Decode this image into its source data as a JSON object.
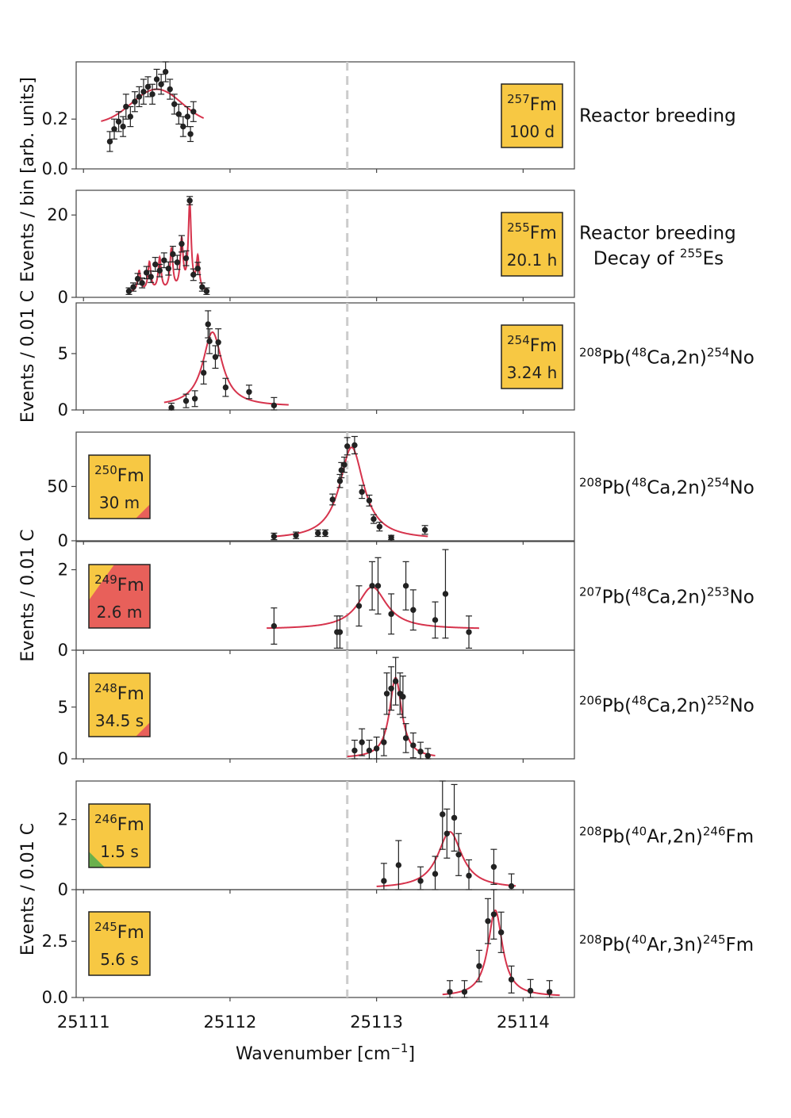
{
  "chart_data": {
    "type": "scatter",
    "xlabel": "Wavenumber [cm",
    "xlabel_sup": "−1",
    "xlabel_end": "]",
    "x_ticks": [
      25111,
      25112,
      25113,
      25114
    ],
    "xlim": [
      25110.95,
      25114.35
    ],
    "reference_line_x": 25112.8,
    "colors": {
      "fit_line": "#d6334c",
      "box_yellow": "#f7c843",
      "box_red": "#e8605a",
      "box_green": "#6ab04c",
      "ref_line": "#cccccc"
    },
    "y_group_labels": [
      {
        "text": "Events / bin [arb. units]",
        "panels": [
          0,
          1
        ]
      },
      {
        "text": "Events / 0.01 C",
        "panels": [
          2
        ]
      },
      {
        "text": "Events / 0.01 C",
        "panels": [
          3,
          4,
          5
        ]
      },
      {
        "text": "Events / 0.01 C",
        "panels": [
          6,
          7
        ]
      }
    ],
    "panels": [
      {
        "isotope_mass": "257",
        "isotope_symbol": "Fm",
        "half_life": "100 d",
        "box_side": "right",
        "box_fill": "yellow",
        "production": [
          {
            "text": "Reactor breeding"
          }
        ],
        "ylim": [
          0,
          0.43
        ],
        "yticks": [
          0.0,
          0.2
        ],
        "ytick_labels": [
          "0.0",
          "0.2"
        ],
        "fit": {
          "type": "gauss",
          "center": 25111.5,
          "width": 0.17,
          "amp": 0.14,
          "baseline": 0.18,
          "range": [
            25111.12,
            25111.82
          ]
        },
        "points": [
          {
            "x": 25111.18,
            "y": 0.11,
            "err": 0.04
          },
          {
            "x": 25111.21,
            "y": 0.16,
            "err": 0.04
          },
          {
            "x": 25111.24,
            "y": 0.19,
            "err": 0.04
          },
          {
            "x": 25111.27,
            "y": 0.17,
            "err": 0.04
          },
          {
            "x": 25111.29,
            "y": 0.25,
            "err": 0.05
          },
          {
            "x": 25111.32,
            "y": 0.21,
            "err": 0.04
          },
          {
            "x": 25111.35,
            "y": 0.27,
            "err": 0.04
          },
          {
            "x": 25111.38,
            "y": 0.29,
            "err": 0.04
          },
          {
            "x": 25111.41,
            "y": 0.31,
            "err": 0.05
          },
          {
            "x": 25111.44,
            "y": 0.33,
            "err": 0.04
          },
          {
            "x": 25111.47,
            "y": 0.3,
            "err": 0.04
          },
          {
            "x": 25111.5,
            "y": 0.36,
            "err": 0.04
          },
          {
            "x": 25111.53,
            "y": 0.34,
            "err": 0.04
          },
          {
            "x": 25111.56,
            "y": 0.39,
            "err": 0.04
          },
          {
            "x": 25111.59,
            "y": 0.32,
            "err": 0.04
          },
          {
            "x": 25111.62,
            "y": 0.26,
            "err": 0.04
          },
          {
            "x": 25111.65,
            "y": 0.22,
            "err": 0.04
          },
          {
            "x": 25111.68,
            "y": 0.17,
            "err": 0.04
          },
          {
            "x": 25111.71,
            "y": 0.21,
            "err": 0.04
          },
          {
            "x": 25111.73,
            "y": 0.14,
            "err": 0.03
          },
          {
            "x": 25111.75,
            "y": 0.23,
            "err": 0.04
          }
        ]
      },
      {
        "isotope_mass": "255",
        "isotope_symbol": "Fm",
        "half_life": "20.1 h",
        "box_side": "right",
        "box_fill": "yellow",
        "production": [
          {
            "text": "Reactor breeding"
          },
          {
            "text": "Decay of ",
            "sup": "255",
            "after": "Es"
          }
        ],
        "ylim": [
          0,
          26
        ],
        "yticks": [
          0,
          20
        ],
        "ytick_labels": [
          "0",
          "20"
        ],
        "fit": {
          "type": "comb",
          "peaks": [
            {
              "x": 25111.38,
              "a": 5
            },
            {
              "x": 25111.45,
              "a": 7
            },
            {
              "x": 25111.52,
              "a": 8
            },
            {
              "x": 25111.6,
              "a": 10
            },
            {
              "x": 25111.67,
              "a": 12
            },
            {
              "x": 25111.725,
              "a": 21
            },
            {
              "x": 25111.78,
              "a": 8
            }
          ],
          "width": 0.012,
          "baseline": 1.2,
          "range": [
            25111.3,
            25111.85
          ]
        },
        "points": [
          {
            "x": 25111.31,
            "y": 1.5,
            "err": 0.8
          },
          {
            "x": 25111.34,
            "y": 2.5,
            "err": 1.0
          },
          {
            "x": 25111.37,
            "y": 4.5,
            "err": 1.3
          },
          {
            "x": 25111.4,
            "y": 3.5,
            "err": 1.2
          },
          {
            "x": 25111.43,
            "y": 6.0,
            "err": 1.5
          },
          {
            "x": 25111.46,
            "y": 5.0,
            "err": 1.4
          },
          {
            "x": 25111.49,
            "y": 8.0,
            "err": 1.7
          },
          {
            "x": 25111.52,
            "y": 6.5,
            "err": 1.5
          },
          {
            "x": 25111.55,
            "y": 9.0,
            "err": 1.8
          },
          {
            "x": 25111.58,
            "y": 7.0,
            "err": 1.6
          },
          {
            "x": 25111.61,
            "y": 10.5,
            "err": 1.9
          },
          {
            "x": 25111.64,
            "y": 8.5,
            "err": 1.7
          },
          {
            "x": 25111.67,
            "y": 13.0,
            "err": 2.0
          },
          {
            "x": 25111.7,
            "y": 9.5,
            "err": 1.8
          },
          {
            "x": 25111.725,
            "y": 23.5,
            "err": 1.0
          },
          {
            "x": 25111.75,
            "y": 5.5,
            "err": 1.4
          },
          {
            "x": 25111.78,
            "y": 7.0,
            "err": 1.5
          },
          {
            "x": 25111.81,
            "y": 2.5,
            "err": 1.0
          },
          {
            "x": 25111.84,
            "y": 1.5,
            "err": 0.8
          }
        ]
      },
      {
        "isotope_mass": "254",
        "isotope_symbol": "Fm",
        "half_life": "3.24 h",
        "box_side": "right",
        "box_fill": "yellow",
        "production": [
          {
            "sup1": "208",
            "a": "Pb(",
            "sup2": "48",
            "b": "Ca,2n)",
            "sup3": "254",
            "c": "No"
          }
        ],
        "ylim": [
          0,
          9.5
        ],
        "yticks": [
          0,
          5
        ],
        "ytick_labels": [
          "0",
          "5"
        ],
        "fit": {
          "type": "lorentz",
          "center": 25111.88,
          "gamma": 0.08,
          "amp": 6.6,
          "baseline": 0.3,
          "range": [
            25111.55,
            25112.4
          ]
        },
        "points": [
          {
            "x": 25111.6,
            "y": 0.2,
            "err": 0.4
          },
          {
            "x": 25111.7,
            "y": 0.8,
            "err": 0.6
          },
          {
            "x": 25111.76,
            "y": 1.0,
            "err": 0.7
          },
          {
            "x": 25111.82,
            "y": 3.3,
            "err": 1.0
          },
          {
            "x": 25111.85,
            "y": 7.6,
            "err": 1.2
          },
          {
            "x": 25111.86,
            "y": 6.1,
            "err": 1.1
          },
          {
            "x": 25111.9,
            "y": 4.7,
            "err": 1.0
          },
          {
            "x": 25111.92,
            "y": 6.0,
            "err": 1.2
          },
          {
            "x": 25111.97,
            "y": 2.0,
            "err": 0.8
          },
          {
            "x": 25112.13,
            "y": 1.6,
            "err": 0.6
          },
          {
            "x": 25112.3,
            "y": 0.4,
            "err": 0.7
          }
        ]
      },
      {
        "isotope_mass": "250",
        "isotope_symbol": "Fm",
        "half_life": "30 m",
        "box_side": "left",
        "box_fill": "yellow",
        "box_corner": "red-bottom-right",
        "production": [
          {
            "sup1": "208",
            "a": "Pb(",
            "sup2": "48",
            "b": "Ca,2n)",
            "sup3": "254",
            "c": "No"
          }
        ],
        "ylim": [
          0,
          100
        ],
        "yticks": [
          0,
          50
        ],
        "ytick_labels": [
          "0",
          "50"
        ],
        "fit": {
          "type": "lorentz",
          "center": 25112.83,
          "gamma": 0.1,
          "amp": 85,
          "baseline": 1,
          "range": [
            25112.3,
            25113.35
          ]
        },
        "points": [
          {
            "x": 25112.3,
            "y": 4,
            "err": 3
          },
          {
            "x": 25112.45,
            "y": 5,
            "err": 3
          },
          {
            "x": 25112.6,
            "y": 7,
            "err": 3
          },
          {
            "x": 25112.65,
            "y": 7,
            "err": 3
          },
          {
            "x": 25112.7,
            "y": 38,
            "err": 5
          },
          {
            "x": 25112.75,
            "y": 55,
            "err": 6
          },
          {
            "x": 25112.76,
            "y": 65,
            "err": 7
          },
          {
            "x": 25112.78,
            "y": 70,
            "err": 7
          },
          {
            "x": 25112.8,
            "y": 87,
            "err": 8
          },
          {
            "x": 25112.85,
            "y": 88,
            "err": 8
          },
          {
            "x": 25112.9,
            "y": 45,
            "err": 6
          },
          {
            "x": 25112.95,
            "y": 37,
            "err": 5
          },
          {
            "x": 25112.98,
            "y": 20,
            "err": 4
          },
          {
            "x": 25113.02,
            "y": 13,
            "err": 4
          },
          {
            "x": 25113.1,
            "y": 3,
            "err": 2
          },
          {
            "x": 25113.33,
            "y": 10,
            "err": 4
          }
        ]
      },
      {
        "isotope_mass": "249",
        "isotope_symbol": "Fm",
        "half_life": "2.6 m",
        "box_side": "left",
        "box_fill": "red",
        "box_corner": "yellow-top-left",
        "production": [
          {
            "sup1": "207",
            "a": "Pb(",
            "sup2": "48",
            "b": "Ca,2n)",
            "sup3": "253",
            "c": "No"
          }
        ],
        "ylim": [
          0,
          2.7
        ],
        "yticks": [
          0,
          2
        ],
        "ytick_labels": [
          "0",
          "2"
        ],
        "fit": {
          "type": "lorentz",
          "center": 25112.97,
          "gamma": 0.12,
          "amp": 1.05,
          "baseline": 0.52,
          "range": [
            25112.25,
            25113.7
          ]
        },
        "points": [
          {
            "x": 25112.3,
            "y": 0.6,
            "err": 0.45
          },
          {
            "x": 25112.73,
            "y": 0.45,
            "err": 0.4
          },
          {
            "x": 25112.75,
            "y": 0.45,
            "err": 0.4
          },
          {
            "x": 25112.88,
            "y": 1.1,
            "err": 0.5
          },
          {
            "x": 25112.97,
            "y": 1.6,
            "err": 0.6
          },
          {
            "x": 25113.01,
            "y": 1.6,
            "err": 0.7
          },
          {
            "x": 25113.1,
            "y": 0.9,
            "err": 0.5
          },
          {
            "x": 25113.2,
            "y": 1.6,
            "err": 0.6
          },
          {
            "x": 25113.25,
            "y": 1.0,
            "err": 0.5
          },
          {
            "x": 25113.4,
            "y": 0.75,
            "err": 0.45
          },
          {
            "x": 25113.47,
            "y": 1.4,
            "err": 1.1
          },
          {
            "x": 25113.63,
            "y": 0.45,
            "err": 0.4
          }
        ]
      },
      {
        "isotope_mass": "248",
        "isotope_symbol": "Fm",
        "half_life": "34.5 s",
        "box_side": "left",
        "box_fill": "yellow",
        "box_corner": "red-bottom-right",
        "production": [
          {
            "sup1": "206",
            "a": "Pb(",
            "sup2": "48",
            "b": "Ca,2n)",
            "sup3": "252",
            "c": "No"
          }
        ],
        "ylim": [
          0,
          10.5
        ],
        "yticks": [
          0,
          5
        ],
        "ytick_labels": [
          "0",
          "5"
        ],
        "fit": {
          "type": "lorentz",
          "center": 25113.13,
          "gamma": 0.05,
          "amp": 7.8,
          "baseline": 0.05,
          "range": [
            25112.8,
            25113.4
          ]
        },
        "points": [
          {
            "x": 25112.85,
            "y": 0.8,
            "err": 1.0
          },
          {
            "x": 25112.9,
            "y": 1.6,
            "err": 1.3
          },
          {
            "x": 25112.95,
            "y": 0.8,
            "err": 1.0
          },
          {
            "x": 25113.0,
            "y": 1.0,
            "err": 1.1
          },
          {
            "x": 25113.05,
            "y": 1.6,
            "err": 1.3
          },
          {
            "x": 25113.07,
            "y": 6.3,
            "err": 2.0
          },
          {
            "x": 25113.1,
            "y": 6.8,
            "err": 2.1
          },
          {
            "x": 25113.13,
            "y": 7.5,
            "err": 2.3
          },
          {
            "x": 25113.16,
            "y": 6.3,
            "err": 2.0
          },
          {
            "x": 25113.18,
            "y": 6.0,
            "err": 2.0
          },
          {
            "x": 25113.2,
            "y": 2.0,
            "err": 1.4
          },
          {
            "x": 25113.25,
            "y": 1.3,
            "err": 1.2
          },
          {
            "x": 25113.3,
            "y": 0.7,
            "err": 0.9
          },
          {
            "x": 25113.35,
            "y": 0.3,
            "err": 0.7
          }
        ]
      },
      {
        "isotope_mass": "246",
        "isotope_symbol": "Fm",
        "half_life": "1.5 s",
        "box_side": "left",
        "box_fill": "yellow",
        "box_corner": "green-bottom-left",
        "production": [
          {
            "sup1": "208",
            "a": "Pb(",
            "sup2": "40",
            "b": "Ar,2n)",
            "sup3": "246",
            "c": "Fm"
          }
        ],
        "ylim": [
          0,
          3.1
        ],
        "yticks": [
          0,
          2
        ],
        "ytick_labels": [
          "0",
          "2"
        ],
        "fit": {
          "type": "lorentz",
          "center": 25113.5,
          "gamma": 0.1,
          "amp": 1.62,
          "baseline": 0.03,
          "range": [
            25113.0,
            25113.95
          ]
        },
        "points": [
          {
            "x": 25113.05,
            "y": 0.25,
            "err": 0.5
          },
          {
            "x": 25113.15,
            "y": 0.7,
            "err": 0.7
          },
          {
            "x": 25113.3,
            "y": 0.25,
            "err": 0.4
          },
          {
            "x": 25113.4,
            "y": 0.45,
            "err": 0.5
          },
          {
            "x": 25113.45,
            "y": 2.15,
            "err": 1.0
          },
          {
            "x": 25113.48,
            "y": 1.6,
            "err": 0.7
          },
          {
            "x": 25113.53,
            "y": 2.05,
            "err": 0.95
          },
          {
            "x": 25113.56,
            "y": 1.0,
            "err": 0.6
          },
          {
            "x": 25113.63,
            "y": 0.4,
            "err": 0.45
          },
          {
            "x": 25113.8,
            "y": 0.65,
            "err": 0.5
          },
          {
            "x": 25113.92,
            "y": 0.1,
            "err": 0.35
          }
        ]
      },
      {
        "isotope_mass": "245",
        "isotope_symbol": "Fm",
        "half_life": "5.6 s",
        "box_side": "left",
        "box_fill": "yellow",
        "production": [
          {
            "sup1": "208",
            "a": "Pb(",
            "sup2": "40",
            "b": "Ar,3n)",
            "sup3": "245",
            "c": "Fm"
          }
        ],
        "ylim": [
          0,
          4.8
        ],
        "yticks": [
          0,
          2.5
        ],
        "ytick_labels": [
          "0.0",
          "2.5"
        ],
        "fit": {
          "type": "lorentz",
          "center": 25113.81,
          "gamma": 0.06,
          "amp": 3.85,
          "baseline": 0.03,
          "range": [
            25113.45,
            25114.25
          ]
        },
        "points": [
          {
            "x": 25113.5,
            "y": 0.25,
            "err": 0.5
          },
          {
            "x": 25113.6,
            "y": 0.25,
            "err": 0.5
          },
          {
            "x": 25113.7,
            "y": 1.4,
            "err": 0.7
          },
          {
            "x": 25113.76,
            "y": 3.4,
            "err": 1.0
          },
          {
            "x": 25113.8,
            "y": 3.7,
            "err": 1.1
          },
          {
            "x": 25113.85,
            "y": 2.9,
            "err": 0.9
          },
          {
            "x": 25113.92,
            "y": 0.8,
            "err": 0.6
          },
          {
            "x": 25114.05,
            "y": 0.3,
            "err": 0.5
          },
          {
            "x": 25114.18,
            "y": 0.25,
            "err": 0.5
          }
        ]
      }
    ]
  }
}
